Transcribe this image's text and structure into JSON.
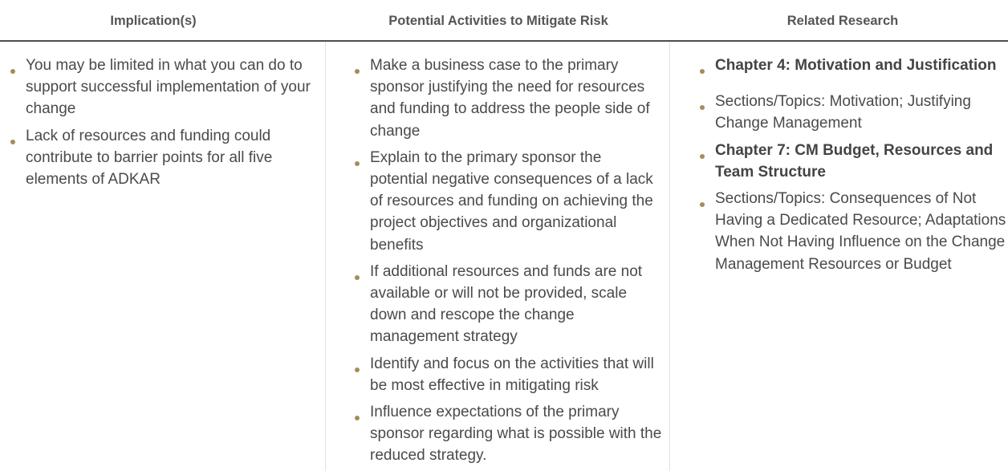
{
  "headers": {
    "implications": "Implication(s)",
    "activities": "Potential Activities to Mitigate Risk",
    "research": "Related Research"
  },
  "implications": [
    "You may be limited in what you can do to support successful implementation of your change",
    "Lack of resources and funding could contribute to barrier points for all five elements of ADKAR"
  ],
  "activities": [
    "Make a business case to the primary sponsor justifying the need for resources and funding to address the people side of change",
    "Explain to the primary sponsor the potential negative consequences of a lack of resources and funding on achieving the project objectives and organizational benefits",
    "If additional resources and funds are not available or will not be provided, scale down and rescope the change management strategy",
    "Identify and focus on the activities that will be most effective in mitigating risk",
    "Influence expectations of the primary sponsor regarding what is possible with the reduced strategy."
  ],
  "research": [
    "Chapter 4: Motivation and Justification",
    "Sections/Topics: Motivation; Justifying Change Management",
    "Chapter 7: CM Budget, Resources and Team Structure",
    "Sections/Topics: Consequences of Not Having a Dedicated Resource; Adaptations When Not Having Influence on the Change Management Resources or Budget"
  ],
  "colors": {
    "bullet": "#a88a5c",
    "header_rule": "#4d4d4d",
    "text": "#4a4a4a"
  }
}
